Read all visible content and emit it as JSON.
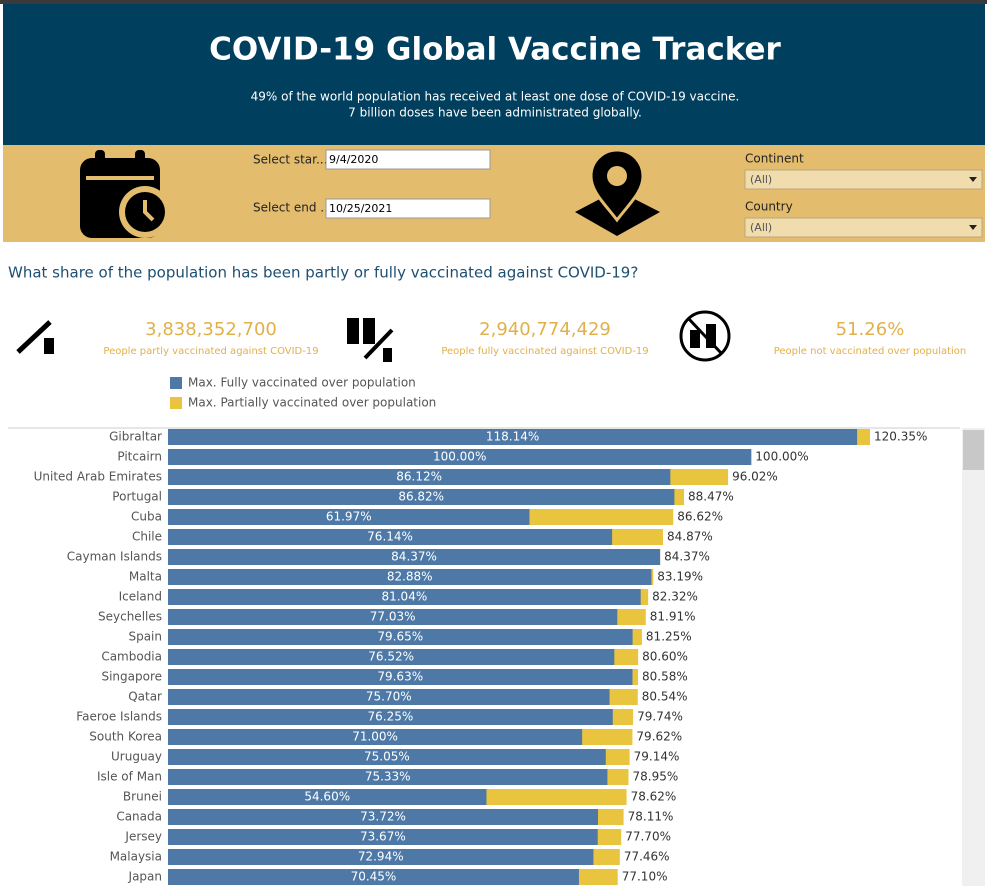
{
  "header": {
    "title": "COVID-19 Global Vaccine Tracker",
    "subtitle_lines": [
      "49% of the world population has received at least one dose of COVID-19 vaccine.",
      "7 billion doses have been administrated globally."
    ]
  },
  "filters": {
    "start_label": "Select star...",
    "start_value": "9/4/2020",
    "end_label": "Select end ...",
    "end_value": "10/25/2021",
    "continent_label": "Continent",
    "continent_value": "(All)",
    "country_label": "Country",
    "country_value": "(All)"
  },
  "kpis": [
    {
      "value": "3,838,352,700",
      "caption": "People partly vaccinated against COVID-19"
    },
    {
      "value": "2,940,774,429",
      "caption": "People fully vaccinated against COVID-19"
    },
    {
      "value": "51.26%",
      "caption": "People not vaccinated over population"
    }
  ],
  "chart_data": {
    "type": "bar-overlap",
    "title": "What share of the population has been partly or fully vaccinated against COVID-19?",
    "categories": [
      "Gibraltar",
      "Pitcairn",
      "United Arab Emirates",
      "Portugal",
      "Cuba",
      "Chile",
      "Cayman Islands",
      "Malta",
      "Iceland",
      "Seychelles",
      "Spain",
      "Cambodia",
      "Singapore",
      "Qatar",
      "Faeroe Islands",
      "South Korea",
      "Uruguay",
      "Isle of Man",
      "Brunei",
      "Canada",
      "Jersey",
      "Malaysia",
      "Japan"
    ],
    "series": [
      {
        "name": "Max. Fully vaccinated over population",
        "color": "#4e79a7",
        "values": [
          118.14,
          100.0,
          86.12,
          86.82,
          61.97,
          76.14,
          84.37,
          82.88,
          81.04,
          77.03,
          79.65,
          76.52,
          79.63,
          75.7,
          76.25,
          71.0,
          75.05,
          75.33,
          54.6,
          73.72,
          73.67,
          72.94,
          70.45
        ],
        "value_labels": [
          "118.14%",
          "100.00%",
          "86.12%",
          "86.82%",
          "61.97%",
          "76.14%",
          "84.37%",
          "82.88%",
          "81.04%",
          "77.03%",
          "79.65%",
          "76.52%",
          "79.63%",
          "75.70%",
          "76.25%",
          "71.00%",
          "75.05%",
          "75.33%",
          "54.60%",
          "73.72%",
          "73.67%",
          "72.94%",
          "70.45%"
        ]
      },
      {
        "name": "Max. Partially vaccinated over population",
        "color": "#e9c53f",
        "values": [
          120.35,
          100.0,
          96.02,
          88.47,
          86.62,
          84.87,
          84.37,
          83.19,
          82.32,
          81.91,
          81.25,
          80.6,
          80.58,
          80.54,
          79.74,
          79.62,
          79.14,
          78.95,
          78.62,
          78.11,
          77.7,
          77.46,
          77.1
        ],
        "value_labels": [
          "120.35%",
          "100.00%",
          "96.02%",
          "88.47%",
          "86.62%",
          "84.87%",
          "84.37%",
          "83.19%",
          "82.32%",
          "81.91%",
          "81.25%",
          "80.60%",
          "80.58%",
          "80.54%",
          "79.74%",
          "79.62%",
          "79.14%",
          "78.95%",
          "78.62%",
          "78.11%",
          "77.70%",
          "77.46%",
          "77.10%"
        ]
      }
    ]
  }
}
